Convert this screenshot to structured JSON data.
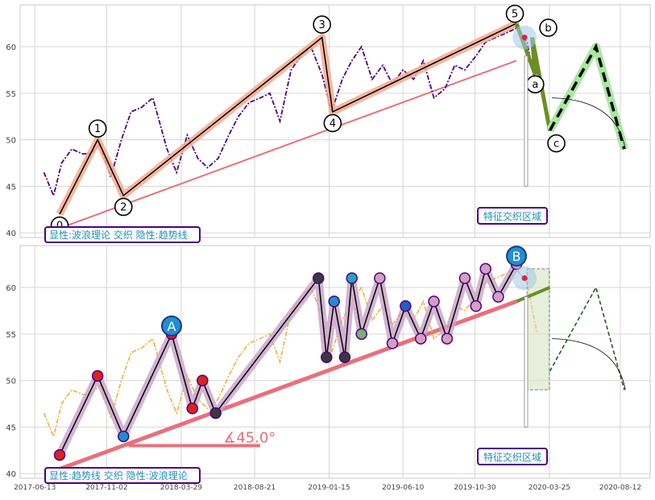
{
  "chart_data": [
    {
      "type": "line",
      "panel": "top",
      "ylim": [
        39.5,
        64.5
      ],
      "yticks": [
        40,
        45,
        50,
        55,
        60
      ],
      "grid": true,
      "series": [],
      "price_series": {
        "x": [
          "2017-07-01",
          "2017-07-20",
          "2017-08-05",
          "2017-08-25",
          "2017-09-15",
          "2017-10-01",
          "2017-10-20",
          "2017-11-10",
          "2017-12-01",
          "2017-12-20",
          "2018-01-10",
          "2018-02-01",
          "2018-03-01",
          "2018-03-20",
          "2018-04-10",
          "2018-05-01",
          "2018-05-20",
          "2018-06-10",
          "2018-07-01",
          "2018-07-20",
          "2018-08-10",
          "2018-09-01",
          "2018-09-20",
          "2018-10-10",
          "2018-11-01",
          "2018-11-20",
          "2018-12-10",
          "2019-01-01",
          "2019-01-20",
          "2019-02-10",
          "2019-03-01",
          "2019-03-20",
          "2019-04-10",
          "2019-05-01",
          "2019-05-20",
          "2019-06-10",
          "2019-07-01",
          "2019-07-20",
          "2019-08-10",
          "2019-09-01",
          "2019-09-20",
          "2019-10-10",
          "2019-11-01",
          "2019-11-20",
          "2019-12-10",
          "2020-01-01",
          "2020-01-20",
          "2020-02-10",
          "2020-03-01"
        ],
        "y": [
          46.5,
          44.0,
          47.5,
          49.0,
          48.5,
          48.5,
          49.5,
          46.0,
          50.0,
          53.0,
          53.5,
          54.5,
          49.0,
          46.5,
          50.5,
          48.0,
          47.0,
          48.0,
          50.5,
          52.5,
          54.0,
          54.5,
          55.0,
          52.0,
          57.5,
          59.0,
          60.0,
          57.0,
          53.0,
          56.5,
          58.5,
          60.0,
          56.5,
          58.0,
          56.0,
          57.5,
          56.5,
          58.5,
          54.5,
          55.5,
          58.0,
          57.5,
          59.0,
          60.5,
          61.0,
          61.5,
          62.0,
          60.5,
          55.0
        ]
      },
      "wave_labels": [
        "0",
        "1",
        "2",
        "3",
        "4",
        "5",
        "a",
        "b",
        "c"
      ],
      "wave_points": {
        "x": [
          "2017-08-01",
          "2017-10-15",
          "2017-12-05",
          "2019-01-01",
          "2019-01-22",
          "2020-01-20",
          "2020-02-26",
          "2020-02-20",
          "2020-03-26"
        ],
        "y": [
          42.0,
          50.0,
          44.0,
          61.0,
          53.0,
          62.5,
          57.0,
          61.0,
          51.0
        ]
      },
      "trend_line": {
        "x": [
          "2017-08-01",
          "2020-01-20"
        ],
        "y": [
          40.5,
          58.5
        ]
      },
      "projection": {
        "x": [
          "2020-03-26",
          "2020-06-25",
          "2020-08-20"
        ],
        "y": [
          51.0,
          60.0,
          49.0
        ]
      },
      "annotations": [
        "特征交织区域"
      ],
      "info_label": "显性:波浪理论 交织 隐性:趋势线"
    },
    {
      "type": "line",
      "panel": "bottom",
      "ylim": [
        39.5,
        64.5
      ],
      "yticks": [
        40,
        45,
        50,
        55,
        60
      ],
      "xticks": [
        "2017-06-13",
        "2017-11-02",
        "2018-03-29",
        "2018-08-21",
        "2019-01-15",
        "2019-06-10",
        "2019-10-30",
        "2020-03-25",
        "2020-08-12"
      ],
      "grid": true,
      "series": [],
      "zigzag": {
        "x": [
          "2017-08-01",
          "2017-10-15",
          "2017-12-05",
          "2018-03-10",
          "2018-04-20",
          "2018-05-10",
          "2018-06-05",
          "2018-12-25",
          "2019-01-10",
          "2019-01-25",
          "2019-02-15",
          "2019-03-01",
          "2019-03-20",
          "2019-04-25",
          "2019-05-20",
          "2019-06-15",
          "2019-07-15",
          "2019-08-10",
          "2019-09-05",
          "2019-10-10",
          "2019-11-01",
          "2019-11-20",
          "2019-12-15",
          "2020-01-20"
        ],
        "y": [
          42.0,
          50.5,
          44.0,
          55.0,
          47.0,
          50.0,
          46.5,
          61.0,
          52.5,
          58.5,
          52.5,
          61.0,
          55.0,
          61.0,
          54.0,
          58.0,
          54.5,
          58.5,
          54.5,
          61.0,
          58.0,
          62.0,
          59.0,
          62.5
        ]
      },
      "big_labels": [
        "A",
        "B"
      ],
      "angle_label": "∡45.0°",
      "trend_line": {
        "x": [
          "2017-08-01",
          "2020-01-20"
        ],
        "y": [
          40.5,
          58.5
        ]
      },
      "projection": {
        "x": [
          "2020-03-26",
          "2020-06-25",
          "2020-08-20"
        ],
        "y": [
          51.0,
          60.0,
          49.0
        ]
      },
      "annotations": [
        "特征交织区域"
      ],
      "info_label": "显性:趋势线 交织 隐性:波浪理论"
    }
  ],
  "colors": {
    "price": "#4b0082",
    "price_bottom": "#f0b040",
    "wave_highlight": "#f4a98c",
    "trend": "#e8707c",
    "correction": "#6b8e23",
    "projection_glow": "#a8e8a0",
    "label_text": "#1f8fb4",
    "label_border": "#4b0082",
    "zigzag_band": "#c8a0c8"
  }
}
